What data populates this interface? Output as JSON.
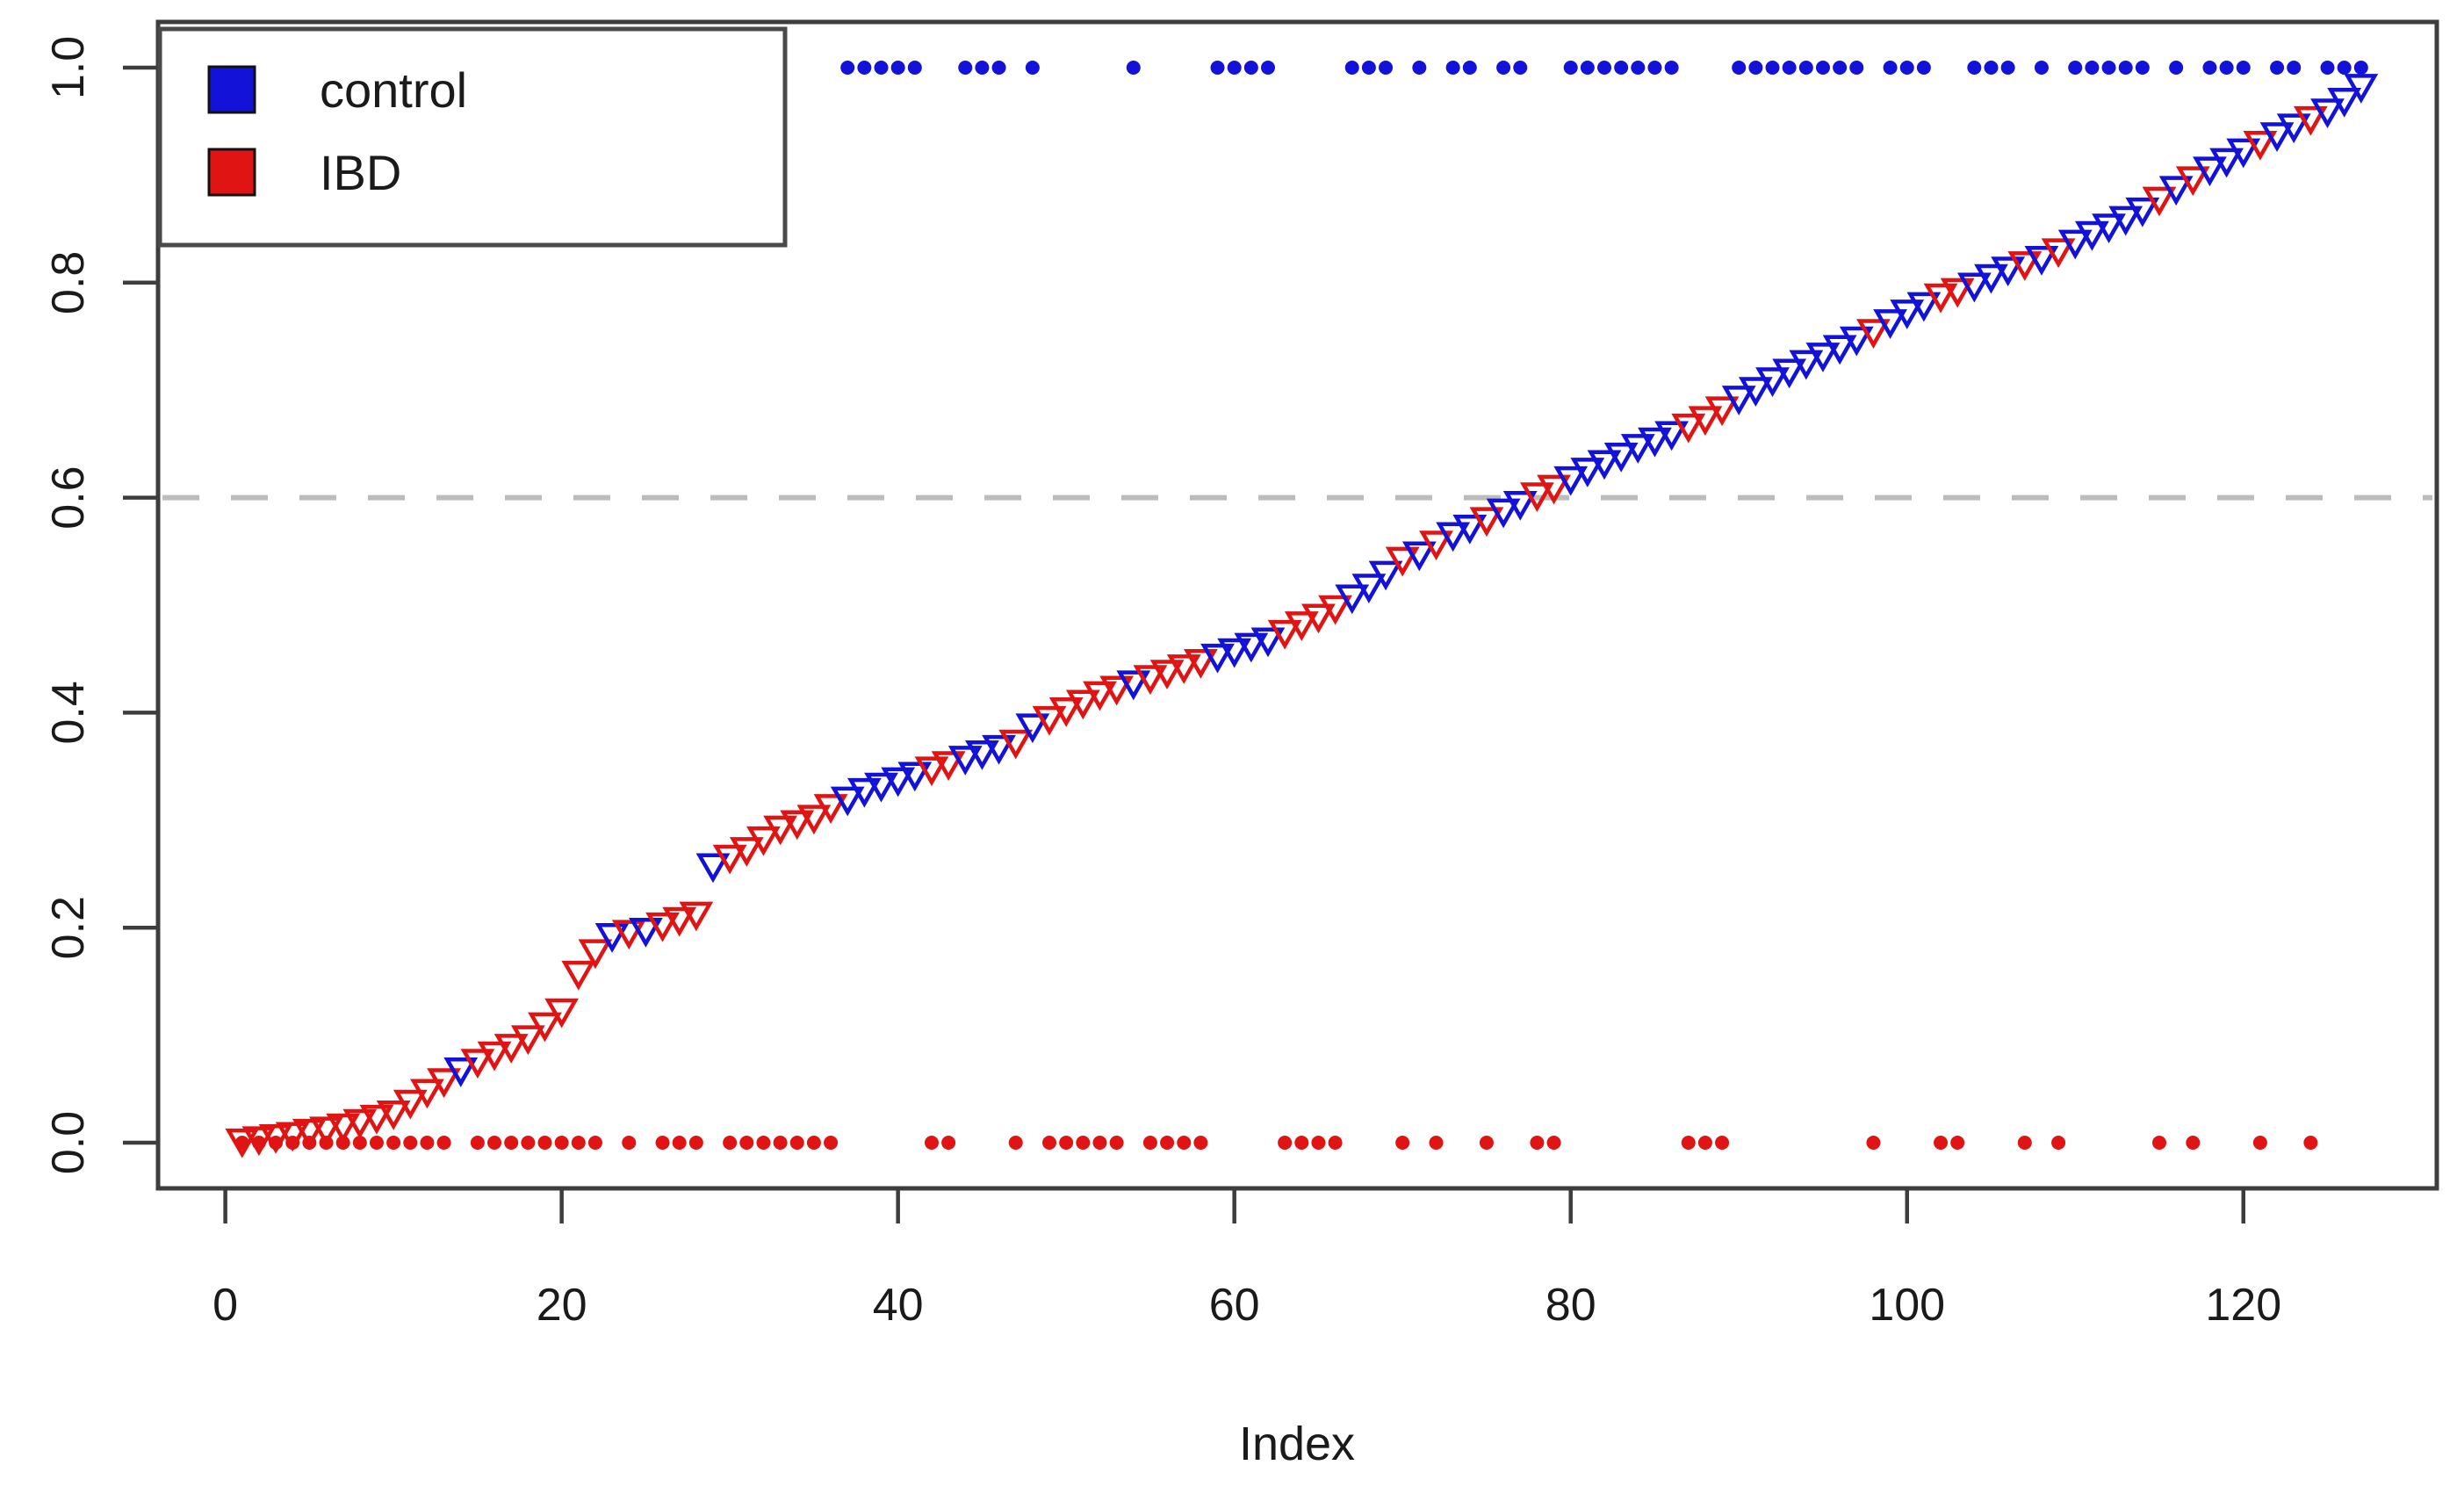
{
  "figure": {
    "background": "#ffffff",
    "axis_color": "#3d3d3d",
    "label_color": "#1a1a1a",
    "legend": {
      "items": [
        {
          "label": "control",
          "color": "#1212d9"
        },
        {
          "label": "IBD",
          "color": "#e11414"
        }
      ],
      "border_color": "#4a4a4a",
      "swatch_border": "#111111"
    }
  },
  "chart_data": {
    "type": "scatter",
    "title": "",
    "xlabel": "Index",
    "ylabel": "",
    "description": "Sorted classification scores (probability of control) by sample index, drawn as open downward triangles coloured by true class. Rug of filled dots at y=1.0 marks control samples and at y=0.0 marks IBD samples. Dashed grey horizontal reference line at 0.6.",
    "n_points": 127,
    "x_start_index": 1,
    "xlim": [
      -4.0,
      131.5
    ],
    "ylim": [
      -0.0425,
      1.0425
    ],
    "x_ticks": [
      0,
      20,
      40,
      60,
      80,
      100,
      120
    ],
    "y_ticks": [
      0.0,
      0.2,
      0.4,
      0.6,
      0.8,
      1.0
    ],
    "y_tick_labels": [
      "0.0",
      "0.2",
      "0.4",
      "0.6",
      "0.8",
      "1.0"
    ],
    "grid": false,
    "legend_position": "top-left",
    "threshold_line": {
      "y": 0.6,
      "style": "dashed",
      "color": "#bcbcbc"
    },
    "rug": {
      "control_y": 1.0,
      "ibd_y": 0.0
    },
    "class_colors": {
      "control": "#1212d9",
      "IBD": "#e11414"
    },
    "values": [
      0.004,
      0.006,
      0.008,
      0.01,
      0.013,
      0.015,
      0.018,
      0.022,
      0.026,
      0.03,
      0.04,
      0.05,
      0.06,
      0.07,
      0.078,
      0.085,
      0.092,
      0.1,
      0.112,
      0.125,
      0.16,
      0.18,
      0.195,
      0.198,
      0.2,
      0.205,
      0.21,
      0.215,
      0.26,
      0.268,
      0.275,
      0.285,
      0.295,
      0.3,
      0.305,
      0.315,
      0.322,
      0.33,
      0.335,
      0.34,
      0.345,
      0.35,
      0.355,
      0.36,
      0.365,
      0.37,
      0.375,
      0.39,
      0.397,
      0.405,
      0.412,
      0.42,
      0.425,
      0.43,
      0.435,
      0.44,
      0.445,
      0.45,
      0.455,
      0.46,
      0.465,
      0.47,
      0.477,
      0.485,
      0.492,
      0.5,
      0.51,
      0.52,
      0.532,
      0.545,
      0.55,
      0.56,
      0.568,
      0.575,
      0.582,
      0.59,
      0.597,
      0.605,
      0.612,
      0.62,
      0.628,
      0.635,
      0.642,
      0.65,
      0.656,
      0.662,
      0.669,
      0.676,
      0.685,
      0.695,
      0.703,
      0.712,
      0.72,
      0.728,
      0.735,
      0.742,
      0.75,
      0.757,
      0.766,
      0.775,
      0.782,
      0.79,
      0.795,
      0.8,
      0.808,
      0.815,
      0.82,
      0.825,
      0.832,
      0.84,
      0.848,
      0.855,
      0.862,
      0.87,
      0.88,
      0.89,
      0.899,
      0.908,
      0.916,
      0.925,
      0.932,
      0.94,
      0.948,
      0.955,
      0.962,
      0.972,
      0.985
    ],
    "classes": [
      "IBD",
      "IBD",
      "IBD",
      "IBD",
      "IBD",
      "IBD",
      "IBD",
      "IBD",
      "IBD",
      "IBD",
      "IBD",
      "IBD",
      "IBD",
      "control",
      "IBD",
      "IBD",
      "IBD",
      "IBD",
      "IBD",
      "IBD",
      "IBD",
      "IBD",
      "control",
      "IBD",
      "control",
      "IBD",
      "IBD",
      "IBD",
      "control",
      "IBD",
      "IBD",
      "IBD",
      "IBD",
      "IBD",
      "IBD",
      "IBD",
      "control",
      "control",
      "control",
      "control",
      "control",
      "IBD",
      "IBD",
      "control",
      "control",
      "control",
      "IBD",
      "control",
      "IBD",
      "IBD",
      "IBD",
      "IBD",
      "IBD",
      "control",
      "IBD",
      "IBD",
      "IBD",
      "IBD",
      "control",
      "control",
      "control",
      "control",
      "IBD",
      "IBD",
      "IBD",
      "IBD",
      "control",
      "control",
      "control",
      "IBD",
      "control",
      "IBD",
      "control",
      "control",
      "IBD",
      "control",
      "control",
      "IBD",
      "IBD",
      "control",
      "control",
      "control",
      "control",
      "control",
      "control",
      "control",
      "IBD",
      "IBD",
      "IBD",
      "control",
      "control",
      "control",
      "control",
      "control",
      "control",
      "control",
      "control",
      "IBD",
      "control",
      "control",
      "control",
      "IBD",
      "IBD",
      "control",
      "control",
      "control",
      "IBD",
      "control",
      "IBD",
      "control",
      "control",
      "control",
      "control",
      "control",
      "IBD",
      "control",
      "IBD",
      "control",
      "control",
      "control",
      "IBD",
      "control",
      "control",
      "IBD",
      "control",
      "control",
      "control"
    ]
  }
}
